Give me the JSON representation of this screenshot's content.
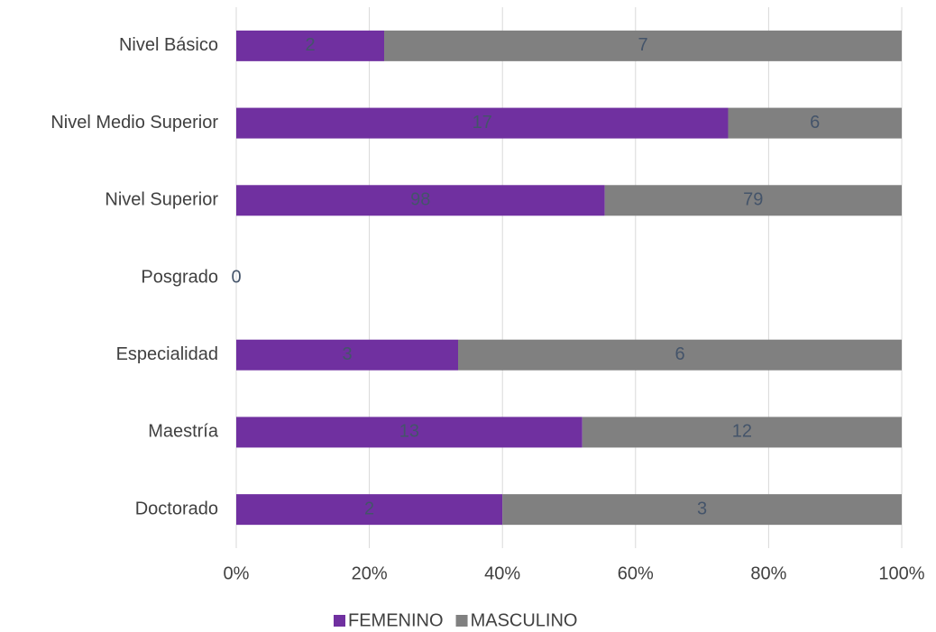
{
  "chart_data": {
    "type": "bar",
    "orientation": "horizontal",
    "stacking": "percent",
    "categories": [
      "Nivel Básico",
      "Nivel Medio Superior",
      "Nivel Superior",
      "Posgrado",
      "Especialidad",
      "Maestría",
      "Doctorado"
    ],
    "series": [
      {
        "name": "FEMENINO",
        "color": "#7030a0",
        "values": [
          2,
          17,
          98,
          0,
          3,
          13,
          2
        ]
      },
      {
        "name": "MASCULINO",
        "color": "#808080",
        "values": [
          7,
          6,
          79,
          0,
          6,
          12,
          3
        ]
      }
    ],
    "xlim": [
      0,
      100
    ],
    "xticks": [
      {
        "value": 0,
        "label": "0%"
      },
      {
        "value": 20,
        "label": "20%"
      },
      {
        "value": 40,
        "label": "40%"
      },
      {
        "value": 60,
        "label": "60%"
      },
      {
        "value": 80,
        "label": "80%"
      },
      {
        "value": 100,
        "label": "100%"
      }
    ],
    "grid": true,
    "legend": "bottom"
  }
}
